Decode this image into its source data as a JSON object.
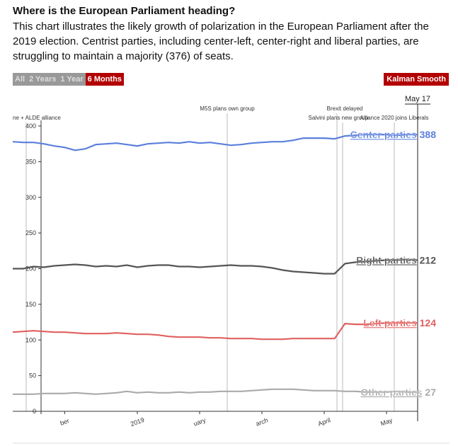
{
  "header": {
    "title": "Where is the European Parliament heading?",
    "description": "This chart illustrates the likely growth of polarization in the European Parliament after the 2019 election. Centrist parties, including center-left, center-right and liberal parties, are struggling to maintain a majority (376) of seats."
  },
  "controls": {
    "ranges": [
      "All",
      "2 Years",
      "1 Year",
      "6 Months"
    ],
    "active": "6 Months",
    "smooth": "Kalman Smooth"
  },
  "chart_data": {
    "type": "line",
    "categories": [
      null,
      null,
      null,
      null,
      null,
      "ber",
      null,
      null,
      null,
      null,
      null,
      null,
      "2019",
      null,
      null,
      null,
      null,
      null,
      "uary",
      null,
      null,
      null,
      null,
      null,
      "arch",
      null,
      null,
      null,
      null,
      null,
      "April",
      null,
      null,
      null,
      null,
      null,
      "May",
      null,
      null,
      null
    ],
    "ylim": [
      0,
      400
    ],
    "yticks": [
      0,
      50,
      100,
      150,
      200,
      250,
      300,
      350,
      400
    ],
    "annotations": [
      "ne + ALDE alliance",
      "M5S plans own group",
      "Brexit delayed",
      "Salvini plans new group",
      "Alliance 2020 joins Liberals"
    ],
    "hover_label": "May 17",
    "series": [
      {
        "name": "Center parties",
        "color": "#5b7fdc",
        "values": [
          378,
          377,
          377,
          375,
          372,
          370,
          366,
          368,
          374,
          375,
          376,
          374,
          372,
          375,
          376,
          377,
          376,
          378,
          376,
          377,
          375,
          373,
          374,
          376,
          377,
          378,
          378,
          380,
          383,
          383,
          383,
          382,
          386,
          387,
          388,
          388,
          388,
          387,
          388,
          388
        ]
      },
      {
        "name": "Right parties",
        "color": "#555555",
        "values": [
          200,
          200,
          203,
          202,
          204,
          205,
          206,
          205,
          203,
          204,
          203,
          205,
          202,
          204,
          205,
          205,
          203,
          203,
          202,
          203,
          204,
          205,
          204,
          204,
          203,
          201,
          198,
          196,
          195,
          194,
          193,
          193,
          207,
          209,
          210,
          211,
          212,
          212,
          213,
          212
        ]
      },
      {
        "name": "Left parties",
        "color": "#e06060",
        "values": [
          111,
          112,
          113,
          112,
          111,
          111,
          110,
          109,
          109,
          109,
          110,
          109,
          108,
          108,
          107,
          105,
          104,
          104,
          104,
          103,
          103,
          102,
          102,
          102,
          101,
          101,
          101,
          102,
          102,
          102,
          102,
          102,
          123,
          122,
          122,
          123,
          124,
          124,
          124,
          124
        ]
      },
      {
        "name": "Other parties",
        "color": "#aaaaaa",
        "values": [
          24,
          24,
          24,
          25,
          25,
          25,
          26,
          25,
          24,
          25,
          26,
          28,
          26,
          27,
          26,
          26,
          27,
          26,
          27,
          27,
          28,
          28,
          28,
          29,
          30,
          31,
          31,
          31,
          30,
          29,
          29,
          29,
          28,
          28,
          27,
          27,
          27,
          28,
          27,
          27
        ]
      }
    ]
  }
}
